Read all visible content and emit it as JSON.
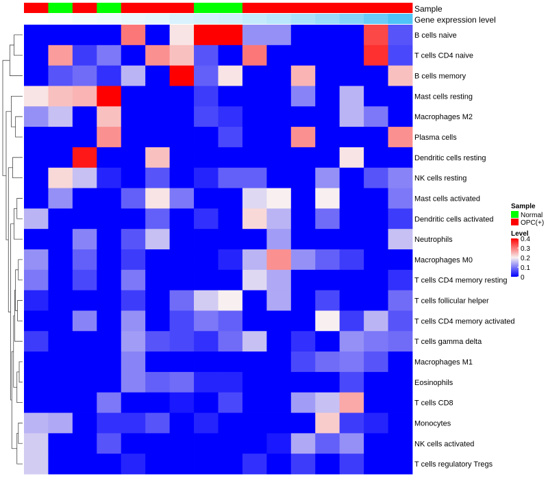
{
  "chart_data": {
    "type": "heatmap",
    "annotation_tracks": [
      {
        "key": "sample",
        "label": "Sample"
      },
      {
        "key": "level",
        "label": "Gene expression level"
      }
    ],
    "columns": [
      {
        "sample": "OPC(+)",
        "level": 0.0
      },
      {
        "sample": "Normal",
        "level": 0.01
      },
      {
        "sample": "OPC(+)",
        "level": 0.02
      },
      {
        "sample": "Normal",
        "level": 0.03
      },
      {
        "sample": "OPC(+)",
        "level": 0.04
      },
      {
        "sample": "OPC(+)",
        "level": 0.05
      },
      {
        "sample": "OPC(+)",
        "level": 0.07
      },
      {
        "sample": "Normal",
        "level": 0.08
      },
      {
        "sample": "Normal",
        "level": 0.09
      },
      {
        "sample": "OPC(+)",
        "level": 0.11
      },
      {
        "sample": "OPC(+)",
        "level": 0.13
      },
      {
        "sample": "OPC(+)",
        "level": 0.16
      },
      {
        "sample": "OPC(+)",
        "level": 0.19
      },
      {
        "sample": "OPC(+)",
        "level": 0.23
      },
      {
        "sample": "OPC(+)",
        "level": 0.28
      },
      {
        "sample": "OPC(+)",
        "level": 0.33
      }
    ],
    "rows": [
      "B cells naive",
      "T cells CD4 naive",
      "B cells memory",
      "Mast cells resting",
      "Macrophages M2",
      "Plasma cells",
      "Dendritic cells resting",
      "NK cells resting",
      "Mast cells activated",
      "Dendritic cells activated",
      "Neutrophils",
      "Macrophages M0",
      "T cells CD4 memory resting",
      "T cells follicular helper",
      "T cells CD4 memory activated",
      "T cells gamma delta",
      "Macrophages M1",
      "Eosinophils",
      "T cells CD8",
      "Monocytes",
      "NK cells activated",
      "T cells regulatory  Tregs"
    ],
    "values": [
      [
        0.0,
        0.0,
        0.0,
        0.0,
        0.3,
        0.0,
        0.21,
        0.4,
        0.4,
        0.12,
        0.12,
        0.0,
        0.0,
        0.0,
        0.34,
        0.07
      ],
      [
        0.0,
        0.27,
        0.05,
        0.1,
        0.0,
        0.28,
        0.24,
        0.07,
        0.0,
        0.3,
        0.0,
        0.0,
        0.0,
        0.0,
        0.36,
        0.06
      ],
      [
        0.0,
        0.07,
        0.09,
        0.04,
        0.15,
        0.0,
        0.4,
        0.08,
        0.21,
        0.0,
        0.0,
        0.25,
        0.0,
        0.0,
        0.0,
        0.24
      ],
      [
        0.21,
        0.24,
        0.25,
        0.4,
        0.0,
        0.0,
        0.0,
        0.05,
        0.0,
        0.0,
        0.0,
        0.11,
        0.0,
        0.15,
        0.0,
        0.0
      ],
      [
        0.12,
        0.16,
        0.0,
        0.24,
        0.0,
        0.0,
        0.0,
        0.06,
        0.04,
        0.0,
        0.0,
        0.0,
        0.0,
        0.15,
        0.1,
        0.0
      ],
      [
        0.0,
        0.0,
        0.0,
        0.28,
        0.0,
        0.0,
        0.0,
        0.0,
        0.06,
        0.0,
        0.0,
        0.28,
        0.0,
        0.0,
        0.0,
        0.28
      ],
      [
        0.0,
        0.0,
        0.38,
        0.0,
        0.0,
        0.24,
        0.0,
        0.0,
        0.0,
        0.0,
        0.0,
        0.0,
        0.0,
        0.21,
        0.0,
        0.0
      ],
      [
        0.0,
        0.22,
        0.16,
        0.03,
        0.0,
        0.07,
        0.0,
        0.03,
        0.08,
        0.08,
        0.0,
        0.0,
        0.12,
        0.0,
        0.07,
        0.11
      ],
      [
        0.0,
        0.12,
        0.0,
        0.0,
        0.08,
        0.21,
        0.1,
        0.0,
        0.0,
        0.18,
        0.2,
        0.0,
        0.2,
        0.0,
        0.0,
        0.1
      ],
      [
        0.15,
        0.0,
        0.0,
        0.0,
        0.0,
        0.08,
        0.0,
        0.04,
        0.0,
        0.22,
        0.15,
        0.0,
        0.09,
        0.0,
        0.0,
        0.05
      ],
      [
        0.0,
        0.0,
        0.11,
        0.0,
        0.07,
        0.16,
        0.0,
        0.0,
        0.0,
        0.0,
        0.13,
        0.0,
        0.0,
        0.0,
        0.0,
        0.16
      ],
      [
        0.12,
        0.0,
        0.08,
        0.0,
        0.05,
        0.0,
        0.0,
        0.0,
        0.03,
        0.15,
        0.28,
        0.12,
        0.08,
        0.05,
        0.0,
        0.0
      ],
      [
        0.1,
        0.0,
        0.06,
        0.0,
        0.1,
        0.0,
        0.0,
        0.0,
        0.0,
        0.18,
        0.14,
        0.0,
        0.0,
        0.0,
        0.0,
        0.04
      ],
      [
        0.03,
        0.0,
        0.0,
        0.0,
        0.05,
        0.0,
        0.09,
        0.17,
        0.2,
        0.0,
        0.14,
        0.0,
        0.06,
        0.0,
        0.0,
        0.09
      ],
      [
        0.0,
        0.0,
        0.11,
        0.0,
        0.12,
        0.0,
        0.06,
        0.1,
        0.08,
        0.0,
        0.0,
        0.0,
        0.2,
        0.05,
        0.15,
        0.07
      ],
      [
        0.05,
        0.0,
        0.0,
        0.0,
        0.13,
        0.07,
        0.06,
        0.04,
        0.09,
        0.16,
        0.0,
        0.04,
        0.0,
        0.12,
        0.1,
        0.09
      ],
      [
        0.0,
        0.0,
        0.0,
        0.0,
        0.11,
        0.0,
        0.0,
        0.0,
        0.0,
        0.0,
        0.0,
        0.06,
        0.09,
        0.1,
        0.07,
        0.0
      ],
      [
        0.0,
        0.0,
        0.0,
        0.0,
        0.11,
        0.08,
        0.09,
        0.03,
        0.03,
        0.0,
        0.0,
        0.0,
        0.0,
        0.06,
        0.0,
        0.0
      ],
      [
        0.0,
        0.0,
        0.0,
        0.1,
        0.0,
        0.0,
        0.02,
        0.0,
        0.06,
        0.0,
        0.0,
        0.13,
        0.16,
        0.26,
        0.0,
        0.0
      ],
      [
        0.15,
        0.14,
        0.0,
        0.04,
        0.04,
        0.07,
        0.0,
        0.03,
        0.0,
        0.0,
        0.0,
        0.0,
        0.23,
        0.05,
        0.03,
        0.0
      ],
      [
        0.17,
        0.0,
        0.0,
        0.07,
        0.0,
        0.0,
        0.0,
        0.0,
        0.0,
        0.0,
        0.02,
        0.14,
        0.08,
        0.12,
        0.0,
        0.0
      ],
      [
        0.17,
        0.0,
        0.0,
        0.0,
        0.03,
        0.0,
        0.0,
        0.0,
        0.0,
        0.04,
        0.0,
        0.05,
        0.0,
        0.05,
        0.0,
        0.0
      ]
    ],
    "color_scale": {
      "domain": [
        0,
        0.2,
        0.4
      ],
      "colors": [
        "#0000ff",
        "#f8f0f0",
        "#ff0000"
      ]
    },
    "level_scale": {
      "domain": [
        0,
        0.33
      ],
      "colors": [
        "#ffffff",
        "#4fc3f7"
      ]
    },
    "legend": {
      "sample": {
        "title": "Sample",
        "entries": [
          {
            "label": "Normal",
            "color": "#00ff00"
          },
          {
            "label": "OPC(+)",
            "color": "#ff0000"
          }
        ]
      },
      "level": {
        "title": "Level",
        "ticks": [
          {
            "value": 0.4,
            "label": "0.4"
          },
          {
            "value": 0.3,
            "label": "0.3"
          },
          {
            "value": 0.2,
            "label": "0.2"
          },
          {
            "value": 0.1,
            "label": "0.1"
          },
          {
            "value": 0,
            "label": "0"
          }
        ]
      }
    },
    "dendrogram": {
      "leaf_order": [
        0,
        1,
        2,
        3,
        4,
        5,
        6,
        7,
        8,
        9,
        10,
        11,
        12,
        13,
        14,
        15,
        16,
        17,
        18,
        19,
        20,
        21
      ],
      "merges": [
        [
          0,
          1,
          0.3
        ],
        [
          2,
          22,
          0.45
        ],
        [
          4,
          5,
          0.25
        ],
        [
          3,
          24,
          0.4
        ],
        [
          6,
          7,
          0.35
        ],
        [
          8,
          9,
          0.2
        ],
        [
          10,
          27,
          0.3
        ],
        [
          11,
          12,
          0.15
        ],
        [
          13,
          14,
          0.18
        ],
        [
          29,
          30,
          0.25
        ],
        [
          15,
          31,
          0.28
        ],
        [
          16,
          17,
          0.12
        ],
        [
          18,
          33,
          0.2
        ],
        [
          32,
          34,
          0.32
        ],
        [
          19,
          20,
          0.15
        ],
        [
          21,
          36,
          0.2
        ],
        [
          35,
          37,
          0.38
        ],
        [
          28,
          38,
          0.42
        ],
        [
          26,
          39,
          0.5
        ],
        [
          25,
          40,
          0.58
        ],
        [
          23,
          41,
          0.7
        ]
      ]
    }
  }
}
